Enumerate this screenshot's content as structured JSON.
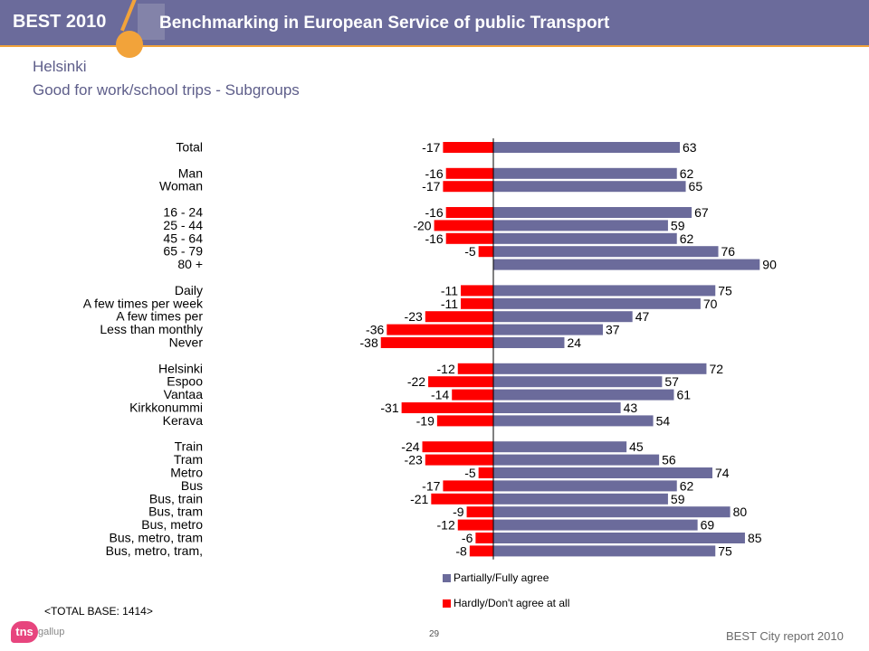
{
  "header": {
    "brand": "BEST 2010",
    "title": "Benchmarking in European Service of public Transport"
  },
  "page": {
    "title_city": "Helsinki",
    "title_sub": "Good for work/school trips - Subgroups",
    "base_note": "<TOTAL BASE: 1414>",
    "page_number": "29",
    "footer": "BEST City report 2010",
    "logo_text": "tns",
    "logo_sub": "gallup"
  },
  "colors": {
    "positive": "#6b6b9b",
    "negative": "#ff0000",
    "header": "#6b6b9b",
    "accent": "#f2a33a"
  },
  "chart_data": {
    "type": "bar",
    "orientation": "horizontal",
    "layout": "diverging",
    "categories": [
      "Total",
      "Man",
      "Woman",
      "16 - 24",
      "25 - 44",
      "45 - 64",
      "65 - 79",
      "80 +",
      "Daily",
      "A few times per week",
      "A few times per",
      "Less than monthly",
      "Never",
      "Helsinki",
      "Espoo",
      "Vantaa",
      "Kirkkonummi",
      "Kerava",
      "Train",
      "Tram",
      "Metro",
      "Bus",
      "Bus, train",
      "Bus, tram",
      "Bus, metro",
      "Bus, metro, tram",
      "Bus, metro, tram,"
    ],
    "groups": [
      [
        0
      ],
      [
        1,
        2
      ],
      [
        3,
        4,
        5,
        6,
        7
      ],
      [
        8,
        9,
        10,
        11,
        12
      ],
      [
        13,
        14,
        15,
        16,
        17
      ],
      [
        18,
        19,
        20,
        21,
        22,
        23,
        24,
        25,
        26
      ]
    ],
    "series": [
      {
        "name": "Partially/Fully agree",
        "color": "#6b6b9b",
        "values": [
          63,
          62,
          65,
          67,
          59,
          62,
          76,
          90,
          75,
          70,
          47,
          37,
          24,
          72,
          57,
          61,
          43,
          54,
          45,
          56,
          74,
          62,
          59,
          80,
          69,
          85,
          75
        ]
      },
      {
        "name": "Hardly/Don't agree at all",
        "color": "#ff0000",
        "values": [
          -17,
          -16,
          -17,
          -16,
          -20,
          -16,
          -5,
          null,
          -11,
          -11,
          -23,
          -36,
          -38,
          -12,
          -22,
          -14,
          -31,
          -19,
          -24,
          -23,
          -5,
          -17,
          -21,
          -9,
          -12,
          -6,
          -8
        ]
      }
    ],
    "xlim": [
      -40,
      100
    ],
    "legend_position": "bottom-center"
  }
}
